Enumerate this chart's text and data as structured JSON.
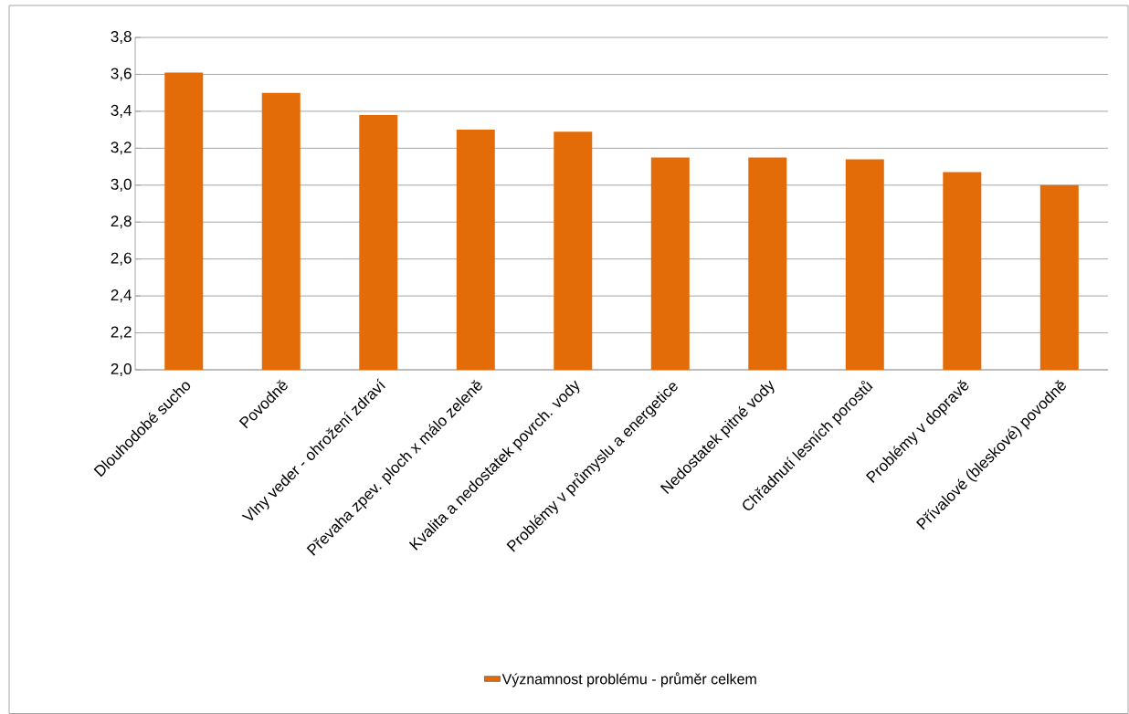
{
  "chart_data": {
    "type": "bar",
    "categories": [
      "Dlouhodobé sucho",
      "Povodně",
      "Vlny veder  - ohrožení zdraví",
      "Převaha zpev. ploch x málo zeleně",
      "Kvalita a nedostatek povrch. vody",
      "Problémy v průmyslu a energetice",
      "Nedostatek pitné vody",
      "Chřadnutí lesních porostů",
      "Problémy v dopravě",
      "Přívalové (bleskové) povodně"
    ],
    "series": [
      {
        "name": "Významnost problému - průměr celkem",
        "color": "#e36c09",
        "values": [
          3.61,
          3.5,
          3.38,
          3.3,
          3.29,
          3.15,
          3.15,
          3.14,
          3.07,
          3.0
        ]
      }
    ],
    "ylim": [
      2.0,
      3.8
    ],
    "yticks": [
      {
        "value": 2.0,
        "label": "2,0"
      },
      {
        "value": 2.2,
        "label": "2,2"
      },
      {
        "value": 2.4,
        "label": "2,4"
      },
      {
        "value": 2.6,
        "label": "2,6"
      },
      {
        "value": 2.8,
        "label": "2,8"
      },
      {
        "value": 3.0,
        "label": "3,0"
      },
      {
        "value": 3.2,
        "label": "3,2"
      },
      {
        "value": 3.4,
        "label": "3,4"
      },
      {
        "value": 3.6,
        "label": "3,6"
      },
      {
        "value": 3.8,
        "label": "3,8"
      }
    ],
    "grid": "y",
    "legend": "bottom"
  }
}
